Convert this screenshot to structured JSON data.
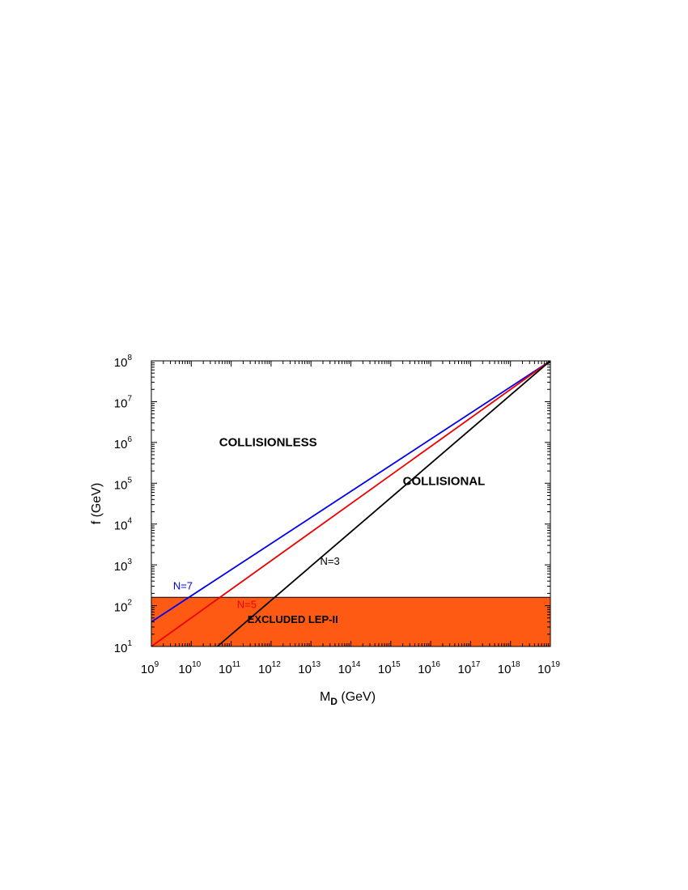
{
  "chart_data": {
    "type": "line",
    "xscale": "log",
    "yscale": "log",
    "xlim": [
      1000000000.0,
      1e+19
    ],
    "ylim": [
      10,
      100000000.0
    ],
    "x_tick_labels": [
      {
        "base": "10",
        "exp": "9",
        "value": 1000000000.0
      },
      {
        "base": "10",
        "exp": "10",
        "value": 10000000000.0
      },
      {
        "base": "10",
        "exp": "11",
        "value": 100000000000.0
      },
      {
        "base": "10",
        "exp": "12",
        "value": 1000000000000.0
      },
      {
        "base": "10",
        "exp": "13",
        "value": 10000000000000.0
      },
      {
        "base": "10",
        "exp": "14",
        "value": 100000000000000.0
      },
      {
        "base": "10",
        "exp": "15",
        "value": 1000000000000000.0
      },
      {
        "base": "10",
        "exp": "16",
        "value": 1e+16
      },
      {
        "base": "10",
        "exp": "17",
        "value": 1e+17
      },
      {
        "base": "10",
        "exp": "18",
        "value": 1e+18
      },
      {
        "base": "10",
        "exp": "19",
        "value": 1e+19
      }
    ],
    "y_tick_labels": [
      {
        "base": "10",
        "exp": "1",
        "value": 10
      },
      {
        "base": "10",
        "exp": "2",
        "value": 100
      },
      {
        "base": "10",
        "exp": "3",
        "value": 1000
      },
      {
        "base": "10",
        "exp": "4",
        "value": 10000
      },
      {
        "base": "10",
        "exp": "5",
        "value": 100000
      },
      {
        "base": "10",
        "exp": "6",
        "value": 1000000
      },
      {
        "base": "10",
        "exp": "7",
        "value": 10000000
      },
      {
        "base": "10",
        "exp": "8",
        "value": 100000000
      }
    ],
    "xlabel_main": "M",
    "xlabel_sub": "D",
    "xlabel_unit": " (GeV)",
    "ylabel": "f (GeV)",
    "series": [
      {
        "name": "N=7",
        "color": "#0000ee",
        "points": [
          [
            1000000000.0,
            40
          ],
          [
            1e+19,
            100000000.0
          ]
        ]
      },
      {
        "name": "N=5",
        "color": "#ee0000",
        "points": [
          [
            1000000000.0,
            10
          ],
          [
            1e+19,
            100000000.0
          ]
        ]
      },
      {
        "name": "N=3",
        "color": "#000000",
        "points": [
          [
            45000000000.0,
            10
          ],
          [
            1e+19,
            100000000.0
          ]
        ]
      }
    ],
    "excluded_region": {
      "label": "EXCLUDED  LEP-II",
      "color": "#ff5a14",
      "y_range": [
        10,
        160
      ]
    },
    "annotations": [
      {
        "text": "COLLISIONLESS",
        "x": 50000000000.0,
        "y": 800000
      },
      {
        "text": "COLLISIONAL",
        "x": 2000000000000000.0,
        "y": 90000
      }
    ],
    "grid": false
  }
}
